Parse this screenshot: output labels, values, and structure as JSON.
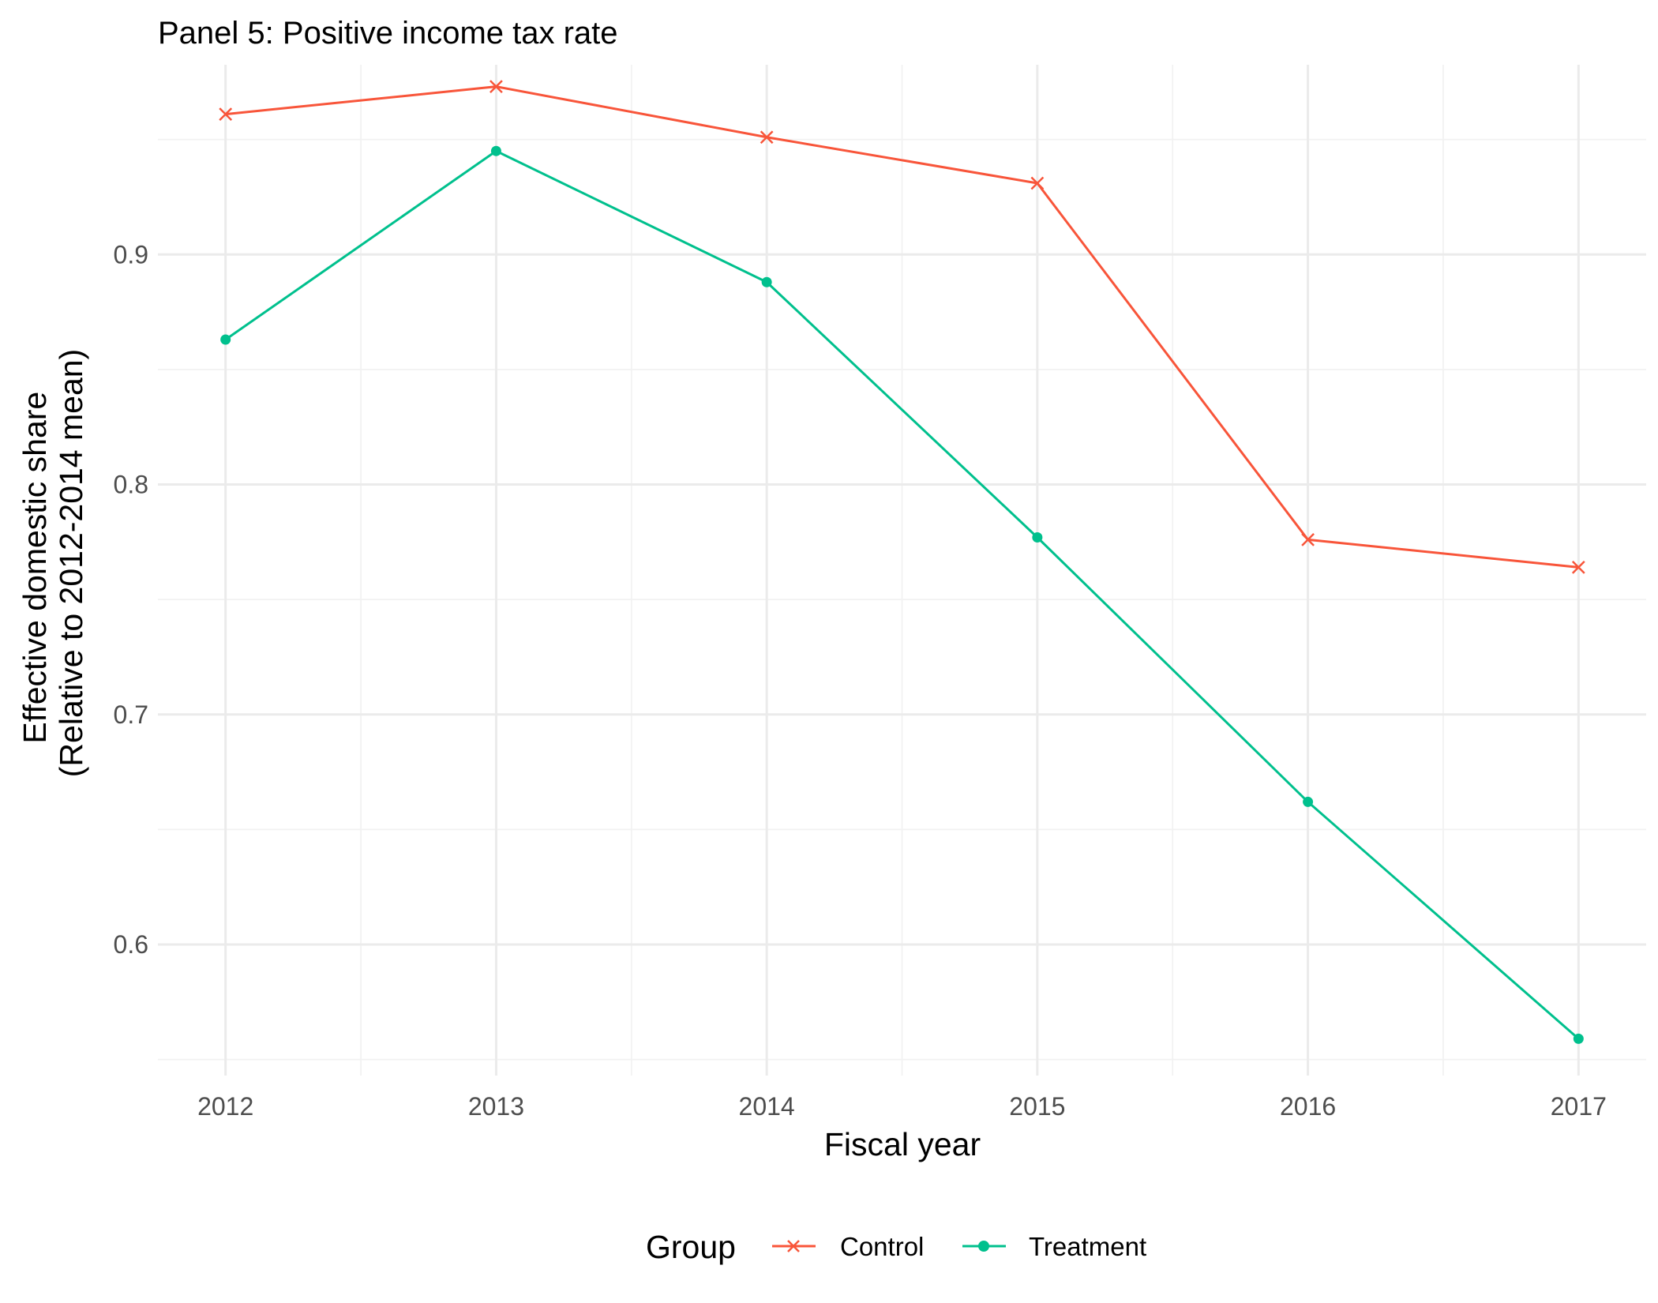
{
  "chart_data": {
    "type": "line",
    "title": "Panel 5: Positive income tax rate",
    "xlabel": "Fiscal year",
    "ylabel_lines": [
      "Effective domestic share",
      "(Relative to 2012-2014 mean)"
    ],
    "x": [
      2012,
      2013,
      2014,
      2015,
      2016,
      2017
    ],
    "xlim": [
      2011.75,
      2017.25
    ],
    "ylim": [
      0.543,
      0.9825
    ],
    "y_ticks": [
      0.6,
      0.7,
      0.8,
      0.9
    ],
    "y_tick_labels": [
      "0.6",
      "0.7",
      "0.8",
      "0.9"
    ],
    "grid": true,
    "legend": {
      "title": "Group",
      "position": "bottom"
    },
    "series": [
      {
        "name": "Control",
        "color": "#F8553A",
        "marker": "x",
        "values": [
          0.961,
          0.973,
          0.951,
          0.931,
          0.776,
          0.764
        ]
      },
      {
        "name": "Treatment",
        "color": "#00C08D",
        "marker": "circle",
        "values": [
          0.863,
          0.945,
          0.888,
          0.777,
          0.662,
          0.559
        ]
      }
    ]
  }
}
